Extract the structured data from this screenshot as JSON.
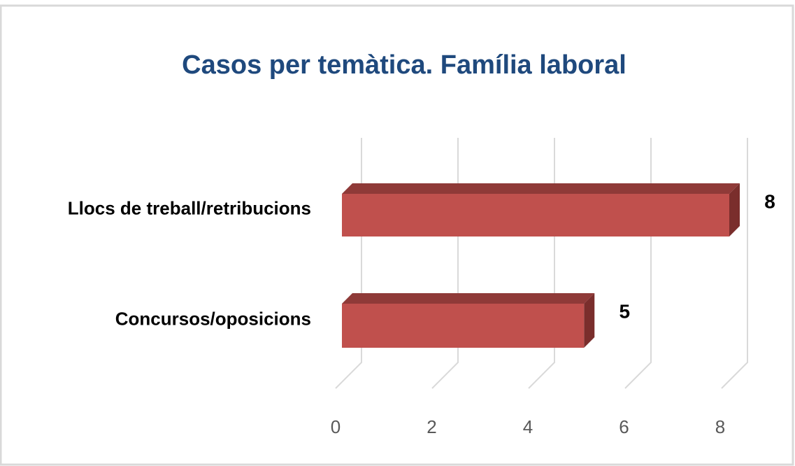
{
  "chart_data": {
    "type": "bar3d-horizontal",
    "title": "Casos per temàtica. Família laboral",
    "categories": [
      "Llocs de treball/retribucions",
      "Concursos/oposicions"
    ],
    "values": [
      8,
      5
    ],
    "color": "#c0504d",
    "xlim": [
      0,
      8
    ],
    "xticks": [
      0,
      2,
      4,
      6,
      8
    ],
    "grid": true
  }
}
